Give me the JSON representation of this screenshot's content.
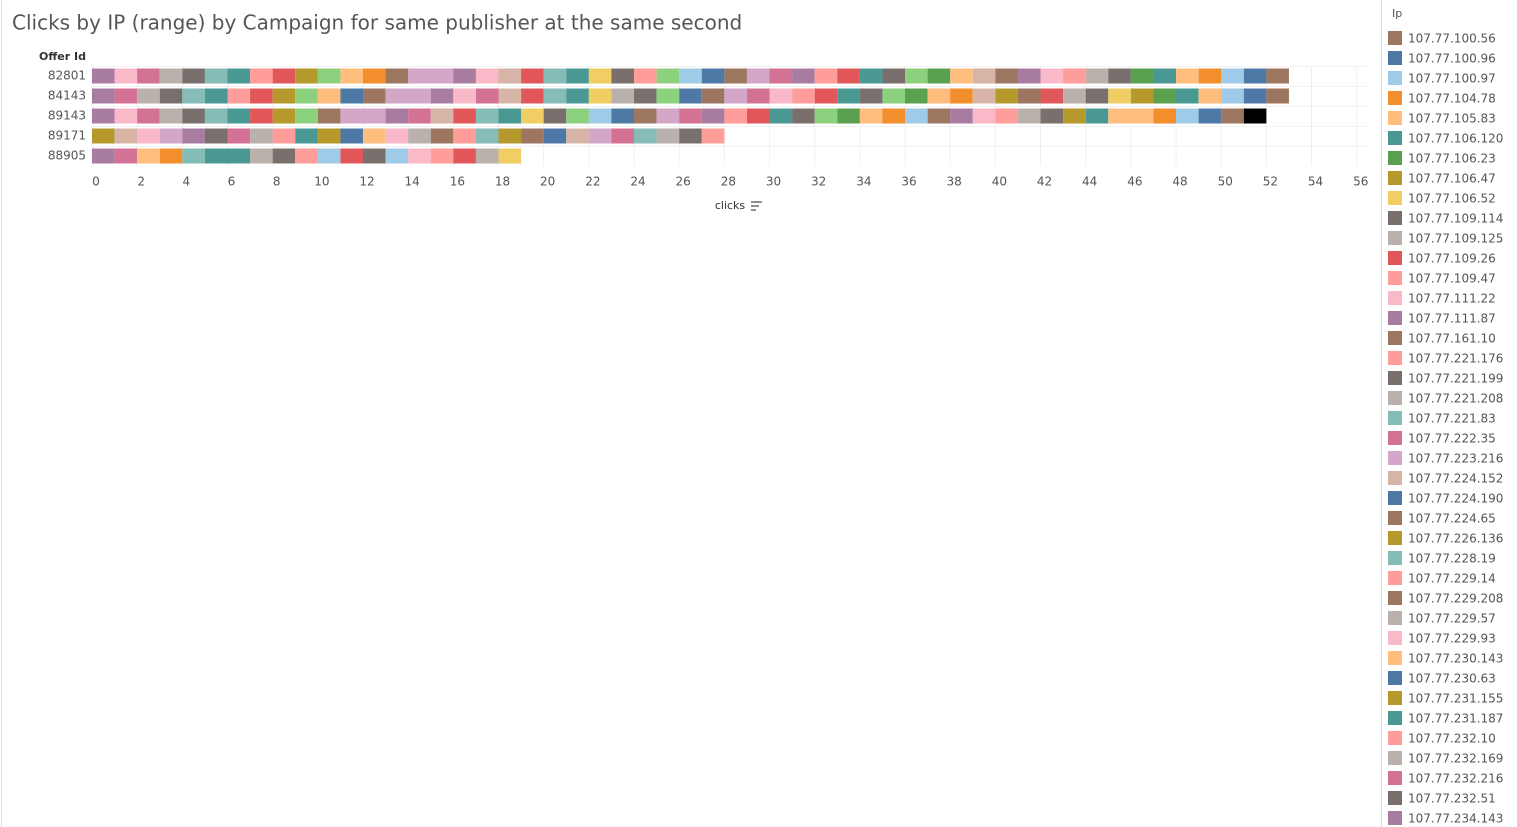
{
  "chart_data": {
    "type": "stacked-hbar",
    "title": "Clicks by IP (range) by Campaign for same publisher at the same second",
    "y_label": "Offer Id",
    "x_label": "clicks",
    "categories": [
      "82801",
      "84143",
      "89143",
      "89171",
      "88905"
    ],
    "xlim": [
      0,
      56.5
    ],
    "xticks": [
      0,
      2,
      4,
      6,
      8,
      10,
      12,
      14,
      16,
      18,
      20,
      22,
      24,
      26,
      28,
      30,
      32,
      34,
      36,
      38,
      40,
      42,
      44,
      46,
      48,
      50,
      52,
      54,
      56
    ],
    "grid": true,
    "segment_values": [
      [
        1,
        1,
        1,
        1,
        1,
        1,
        1,
        1,
        1,
        1,
        1,
        1,
        1,
        1,
        2,
        1,
        1,
        1,
        1,
        1,
        1,
        1,
        1,
        1,
        1,
        1,
        1,
        1,
        1,
        1,
        1,
        1,
        1,
        1,
        1,
        1,
        1,
        1,
        1,
        1,
        1,
        1,
        1,
        1,
        1,
        1,
        1,
        1,
        1,
        1,
        1,
        1
      ],
      [
        1,
        1,
        1,
        1,
        1,
        1,
        1,
        1,
        1,
        1,
        1,
        1,
        1,
        2,
        1,
        1,
        1,
        1,
        1,
        1,
        1,
        1,
        1,
        1,
        1,
        1,
        1,
        1,
        1,
        1,
        1,
        1,
        1,
        1,
        1,
        1,
        1,
        1,
        1,
        1,
        1,
        1,
        1,
        1,
        1,
        1,
        1,
        1,
        1,
        1,
        1,
        1
      ],
      [
        1,
        1,
        1,
        1,
        1,
        1,
        1,
        1,
        1,
        1,
        1,
        2,
        1,
        1,
        1,
        1,
        1,
        1,
        1,
        1,
        1,
        1,
        1,
        1,
        1,
        1,
        1,
        1,
        1,
        1,
        1,
        1,
        1,
        1,
        1,
        1,
        1,
        1,
        1,
        1,
        1,
        1,
        1,
        1,
        2,
        1,
        1,
        1,
        1,
        1
      ],
      [
        1,
        1,
        1,
        1,
        1,
        1,
        1,
        1,
        1,
        1,
        1,
        1,
        1,
        1,
        1,
        1,
        1,
        1,
        1,
        1,
        1,
        1,
        1,
        1,
        1,
        1,
        1,
        1
      ],
      [
        1,
        1,
        1,
        1,
        1,
        2,
        1,
        1,
        1,
        1,
        1,
        1,
        1,
        1,
        1,
        1,
        1,
        1
      ]
    ],
    "segment_colors": [
      [
        "#a87ca0",
        "#f9b9c8",
        "#d37295",
        "#bab0ac",
        "#79706e",
        "#86bcb6",
        "#499894",
        "#ff9d9a",
        "#e15759",
        "#b6992d",
        "#8cd17d",
        "#ffbe7d",
        "#f28e2b",
        "#9d7660",
        "#d4a6c8",
        "#a87ca0",
        "#f9b9c8",
        "#d7b5a6",
        "#e15759",
        "#86bcb6",
        "#499894",
        "#f1ce63",
        "#79706e",
        "#ff9d9a",
        "#8cd17d",
        "#a0cbe8",
        "#4e79a7",
        "#9d7660",
        "#d4a6c8",
        "#d37295",
        "#a87ca0",
        "#ff9d9a",
        "#e15759",
        "#499894",
        "#79706e",
        "#8cd17d",
        "#59a14f",
        "#ffbe7d",
        "#d7b5a6",
        "#9d7660",
        "#a87ca0",
        "#f9b9c8",
        "#ff9d9a",
        "#bab0ac",
        "#79706e",
        "#59a14f",
        "#499894",
        "#ffbe7d",
        "#f28e2b",
        "#a0cbe8",
        "#4e79a7",
        "#9d7660"
      ],
      [
        "#a87ca0",
        "#d37295",
        "#bab0ac",
        "#79706e",
        "#86bcb6",
        "#499894",
        "#ff9d9a",
        "#e15759",
        "#b6992d",
        "#8cd17d",
        "#ffbe7d",
        "#4e79a7",
        "#9d7660",
        "#d4a6c8",
        "#a87ca0",
        "#f9b9c8",
        "#d37295",
        "#d7b5a6",
        "#e15759",
        "#86bcb6",
        "#499894",
        "#f1ce63",
        "#bab0ac",
        "#79706e",
        "#8cd17d",
        "#4e79a7",
        "#9d7660",
        "#d4a6c8",
        "#d37295",
        "#f9b9c8",
        "#ff9d9a",
        "#e15759",
        "#499894",
        "#79706e",
        "#8cd17d",
        "#59a14f",
        "#ffbe7d",
        "#f28e2b",
        "#d7b5a6",
        "#b6992d",
        "#9d7660",
        "#e15759",
        "#bab0ac",
        "#79706e",
        "#f1ce63",
        "#b6992d",
        "#59a14f",
        "#499894",
        "#ffbe7d",
        "#a0cbe8",
        "#4e79a7",
        "#9d7660"
      ],
      [
        "#a87ca0",
        "#f9b9c8",
        "#d37295",
        "#bab0ac",
        "#79706e",
        "#86bcb6",
        "#499894",
        "#e15759",
        "#b6992d",
        "#8cd17d",
        "#9d7660",
        "#d4a6c8",
        "#a87ca0",
        "#d37295",
        "#d7b5a6",
        "#e15759",
        "#86bcb6",
        "#499894",
        "#f1ce63",
        "#79706e",
        "#8cd17d",
        "#a0cbe8",
        "#4e79a7",
        "#9d7660",
        "#d4a6c8",
        "#d37295",
        "#a87ca0",
        "#ff9d9a",
        "#e15759",
        "#499894",
        "#79706e",
        "#8cd17d",
        "#59a14f",
        "#ffbe7d",
        "#f28e2b",
        "#a0cbe8",
        "#9d7660",
        "#a87ca0",
        "#f9b9c8",
        "#ff9d9a",
        "#bab0ac",
        "#79706e",
        "#b6992d",
        "#499894",
        "#ffbe7d",
        "#f28e2b",
        "#a0cbe8",
        "#4e79a7",
        "#9d7660"
      ],
      [
        "#b6992d",
        "#d7b5a6",
        "#f9b9c8",
        "#d4a6c8",
        "#a87ca0",
        "#79706e",
        "#d37295",
        "#bab0ac",
        "#ff9d9a",
        "#499894",
        "#b6992d",
        "#4e79a7",
        "#ffbe7d",
        "#f9b9c8",
        "#bab0ac",
        "#9d7660",
        "#ff9d9a",
        "#86bcb6",
        "#b6992d",
        "#9d7660",
        "#4e79a7",
        "#d7b5a6",
        "#d4a6c8",
        "#d37295",
        "#86bcb6",
        "#bab0ac",
        "#79706e",
        "#ff9d9a"
      ],
      [
        "#a87ca0",
        "#d37295",
        "#ffbe7d",
        "#f28e2b",
        "#86bcb6",
        "#499894",
        "#bab0ac",
        "#79706e",
        "#ff9d9a",
        "#a0cbe8",
        "#e15759",
        "#79706e",
        "#a0cbe8",
        "#f9b9c8",
        "#ff9d9a",
        "#e15759",
        "#bab0ac",
        "#f1ce63"
      ]
    ],
    "legend": {
      "title": "Ip",
      "items": [
        {
          "name": "107.77.100.56",
          "color": "#9d7660"
        },
        {
          "name": "107.77.100.96",
          "color": "#4e79a7"
        },
        {
          "name": "107.77.100.97",
          "color": "#a0cbe8"
        },
        {
          "name": "107.77.104.78",
          "color": "#f28e2b"
        },
        {
          "name": "107.77.105.83",
          "color": "#ffbe7d"
        },
        {
          "name": "107.77.106.120",
          "color": "#499894"
        },
        {
          "name": "107.77.106.23",
          "color": "#59a14f"
        },
        {
          "name": "107.77.106.47",
          "color": "#b6992d"
        },
        {
          "name": "107.77.106.52",
          "color": "#f1ce63"
        },
        {
          "name": "107.77.109.114",
          "color": "#79706e"
        },
        {
          "name": "107.77.109.125",
          "color": "#bab0ac"
        },
        {
          "name": "107.77.109.26",
          "color": "#e15759"
        },
        {
          "name": "107.77.109.47",
          "color": "#ff9d9a"
        },
        {
          "name": "107.77.111.22",
          "color": "#f9b9c8"
        },
        {
          "name": "107.77.111.87",
          "color": "#a87ca0"
        },
        {
          "name": "107.77.161.10",
          "color": "#9d7660"
        },
        {
          "name": "107.77.221.176",
          "color": "#ff9d9a"
        },
        {
          "name": "107.77.221.199",
          "color": "#79706e"
        },
        {
          "name": "107.77.221.208",
          "color": "#bab0ac"
        },
        {
          "name": "107.77.221.83",
          "color": "#86bcb6"
        },
        {
          "name": "107.77.222.35",
          "color": "#d37295"
        },
        {
          "name": "107.77.223.216",
          "color": "#d4a6c8"
        },
        {
          "name": "107.77.224.152",
          "color": "#d7b5a6"
        },
        {
          "name": "107.77.224.190",
          "color": "#4e79a7"
        },
        {
          "name": "107.77.224.65",
          "color": "#9d7660"
        },
        {
          "name": "107.77.226.136",
          "color": "#b6992d"
        },
        {
          "name": "107.77.228.19",
          "color": "#86bcb6"
        },
        {
          "name": "107.77.229.14",
          "color": "#ff9d9a"
        },
        {
          "name": "107.77.229.208",
          "color": "#9d7660"
        },
        {
          "name": "107.77.229.57",
          "color": "#bab0ac"
        },
        {
          "name": "107.77.229.93",
          "color": "#f9b9c8"
        },
        {
          "name": "107.77.230.143",
          "color": "#ffbe7d"
        },
        {
          "name": "107.77.230.63",
          "color": "#4e79a7"
        },
        {
          "name": "107.77.231.155",
          "color": "#b6992d"
        },
        {
          "name": "107.77.231.187",
          "color": "#499894"
        },
        {
          "name": "107.77.232.10",
          "color": "#ff9d9a"
        },
        {
          "name": "107.77.232.169",
          "color": "#bab0ac"
        },
        {
          "name": "107.77.232.216",
          "color": "#d37295"
        },
        {
          "name": "107.77.232.51",
          "color": "#79706e"
        },
        {
          "name": "107.77.234.143",
          "color": "#a87ca0"
        }
      ]
    }
  }
}
